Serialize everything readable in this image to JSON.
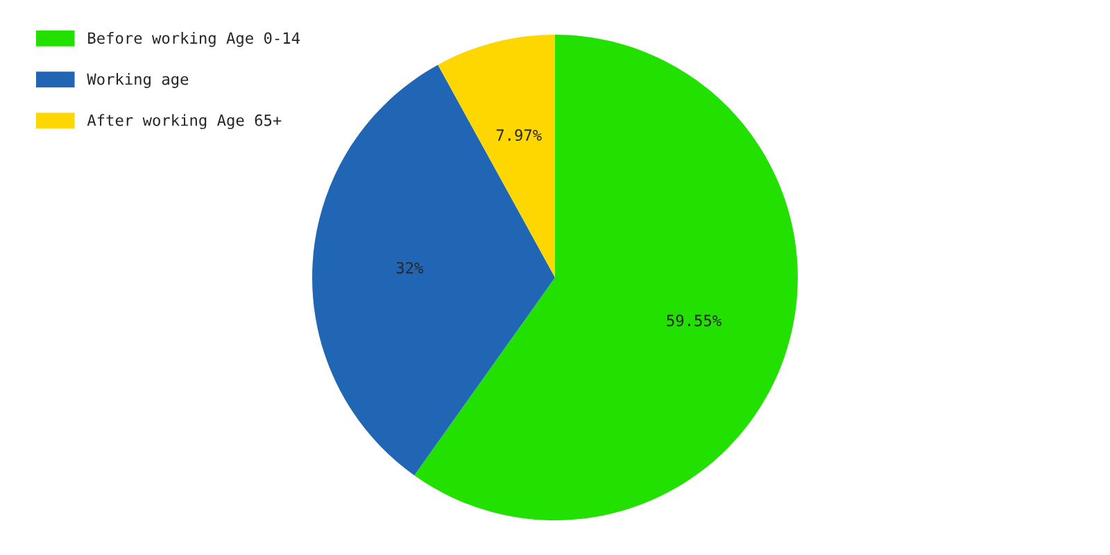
{
  "chart_data": {
    "type": "pie",
    "categories": [
      "Before working Age 0-14",
      "Working age",
      "After working Age 65+"
    ],
    "values": [
      59.55,
      32,
      7.97
    ],
    "colors": [
      "#22e000",
      "#2166b4",
      "#ffd700"
    ],
    "value_labels": [
      "59.55%",
      "32%",
      "7.97%"
    ],
    "legend": "top left"
  }
}
